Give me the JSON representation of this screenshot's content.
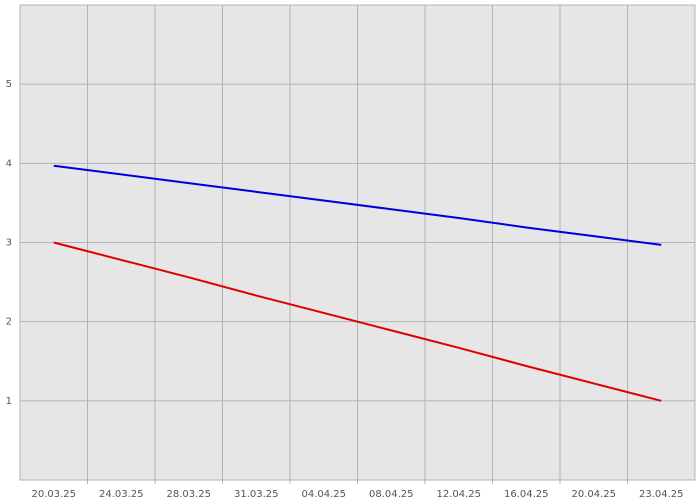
{
  "chart_data": {
    "type": "line",
    "categories": [
      "20.03.25",
      "24.03.25",
      "28.03.25",
      "31.03.25",
      "04.04.25",
      "08.04.25",
      "12.04.25",
      "16.04.25",
      "20.04.25",
      "23.04.25"
    ],
    "series": [
      {
        "color": "#0000dd",
        "values": [
          3.97,
          3.86,
          3.75,
          3.64,
          3.53,
          3.42,
          3.31,
          3.19,
          3.08,
          2.97
        ]
      },
      {
        "color": "#dd0000",
        "values": [
          3.0,
          2.78,
          2.56,
          2.33,
          2.11,
          1.89,
          1.67,
          1.44,
          1.22,
          1.0
        ]
      }
    ],
    "ylim": [
      0,
      6
    ],
    "yticks": [
      1,
      2,
      3,
      4,
      5
    ],
    "grid": true
  }
}
